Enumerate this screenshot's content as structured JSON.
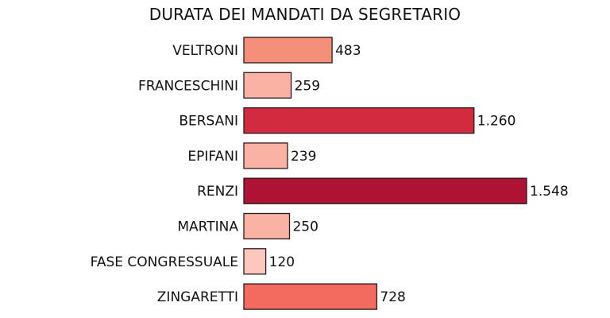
{
  "chart_data": {
    "type": "bar",
    "orientation": "horizontal",
    "title": "DURATA DEI MANDATI DA SEGRETARIO",
    "categories": [
      "VELTRONI",
      "FRANCESCHINI",
      "BERSANI",
      "EPIFANI",
      "RENZI",
      "MARTINA",
      "FASE CONGRESSUALE",
      "ZINGARETTI"
    ],
    "values": [
      483,
      259,
      1260,
      239,
      1548,
      250,
      120,
      728
    ],
    "value_labels": [
      "483",
      "259",
      "1.260",
      "239",
      "1.548",
      "250",
      "120",
      "728"
    ],
    "colors": [
      "#f4907a",
      "#f9b2a4",
      "#d22a3e",
      "#f9b2a4",
      "#ae1235",
      "#f9b2a4",
      "#fcc7bd",
      "#f36b5e"
    ],
    "xlim": [
      0,
      1548
    ],
    "grid": false,
    "legend": "none"
  }
}
